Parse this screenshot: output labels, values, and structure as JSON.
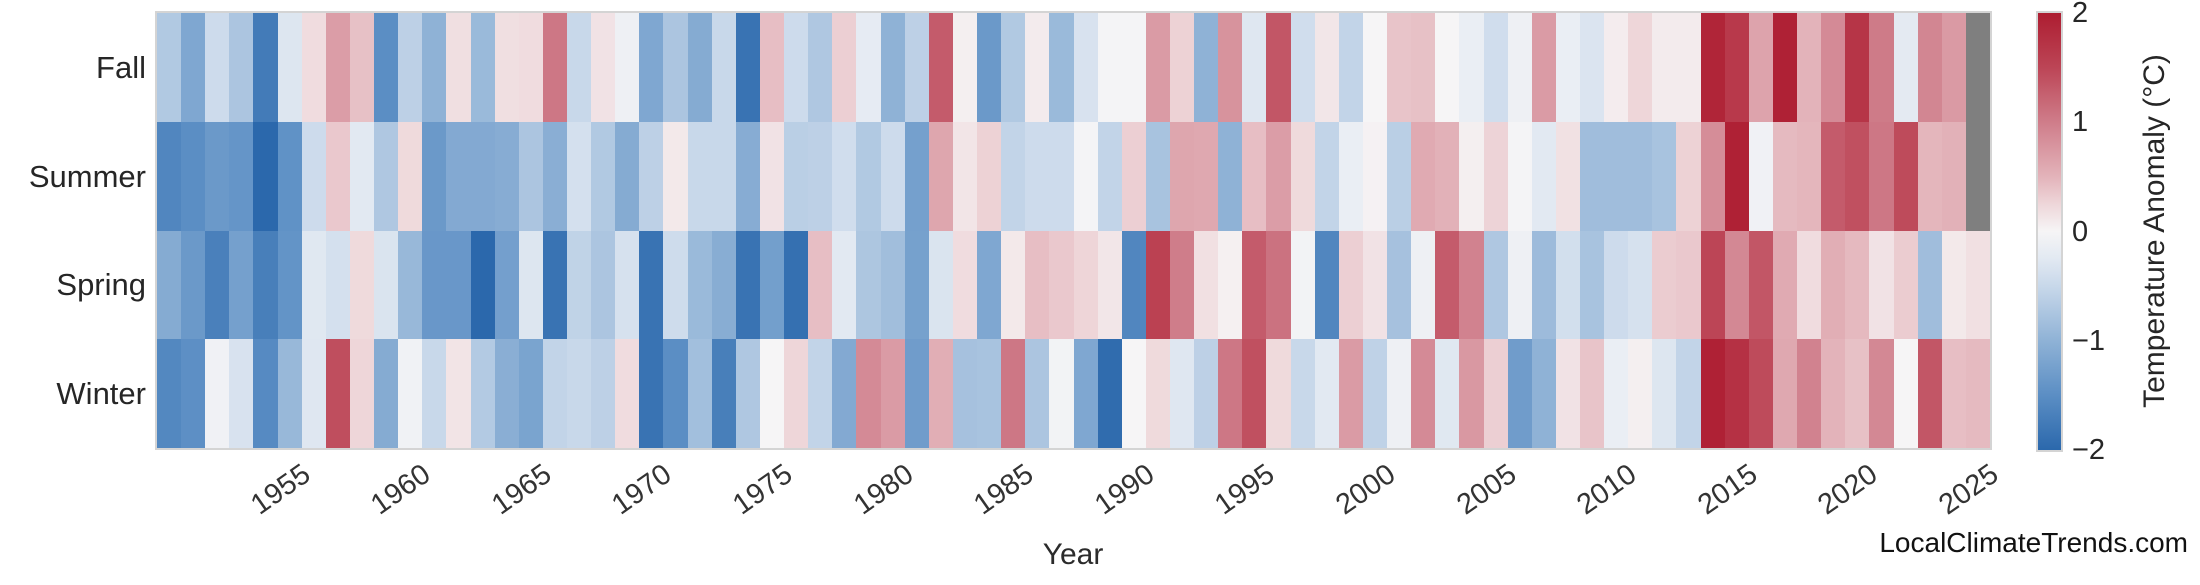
{
  "chart_data": {
    "type": "heatmap",
    "xlabel": "Year",
    "watermark": "LocalClimateTrends.com",
    "rows": [
      "Fall",
      "Summer",
      "Spring",
      "Winter"
    ],
    "years": [
      1950,
      1951,
      1952,
      1953,
      1954,
      1955,
      1956,
      1957,
      1958,
      1959,
      1960,
      1961,
      1962,
      1963,
      1964,
      1965,
      1966,
      1967,
      1968,
      1969,
      1970,
      1971,
      1972,
      1973,
      1974,
      1975,
      1976,
      1977,
      1978,
      1979,
      1980,
      1981,
      1982,
      1983,
      1984,
      1985,
      1986,
      1987,
      1988,
      1989,
      1990,
      1991,
      1992,
      1993,
      1994,
      1995,
      1996,
      1997,
      1998,
      1999,
      2000,
      2001,
      2002,
      2003,
      2004,
      2005,
      2006,
      2007,
      2008,
      2009,
      2010,
      2011,
      2012,
      2013,
      2014,
      2015,
      2016,
      2017,
      2018,
      2019,
      2020,
      2021,
      2022,
      2023,
      2024,
      2025
    ],
    "x_ticks": [
      1955,
      1960,
      1965,
      1970,
      1975,
      1980,
      1985,
      1990,
      1995,
      2000,
      2005,
      2010,
      2015,
      2020,
      2025
    ],
    "series": [
      {
        "name": "Fall",
        "values": [
          -0.7,
          -1.15,
          -0.45,
          -0.75,
          -1.75,
          -0.3,
          0.2,
          0.7,
          0.4,
          -1.5,
          -0.6,
          -1.0,
          0.18,
          -0.9,
          0.18,
          0.2,
          1.05,
          -0.5,
          0.15,
          -0.1,
          -1.15,
          -0.75,
          -1.1,
          -0.5,
          -1.85,
          0.42,
          -0.45,
          -0.72,
          0.3,
          -0.2,
          -1.0,
          -0.6,
          1.3,
          0.05,
          -1.35,
          -0.7,
          0.08,
          -0.9,
          -0.35,
          -0.03,
          -0.03,
          0.72,
          0.28,
          -1.0,
          0.8,
          -0.28,
          1.35,
          -0.42,
          0.12,
          -0.55,
          0.0,
          0.38,
          0.4,
          0.0,
          -0.15,
          -0.42,
          -0.1,
          0.72,
          -0.15,
          -0.32,
          0.07,
          0.25,
          0.08,
          0.08,
          1.9,
          1.65,
          0.65,
          1.95,
          0.5,
          0.88,
          1.7,
          1.02,
          -0.22,
          0.92,
          0.73,
          null
        ]
      },
      {
        "name": "Summer",
        "values": [
          -1.6,
          -1.5,
          -1.35,
          -1.4,
          -2.0,
          -1.45,
          -0.45,
          0.35,
          -0.25,
          -0.72,
          0.22,
          -1.35,
          -1.12,
          -1.12,
          -1.08,
          -0.75,
          -1.05,
          -0.38,
          -0.7,
          -1.1,
          -0.6,
          0.1,
          -0.5,
          -0.5,
          -1.08,
          0.15,
          -0.62,
          -0.6,
          -0.42,
          -0.7,
          -0.45,
          -1.25,
          0.62,
          0.13,
          0.28,
          -0.55,
          -0.45,
          -0.45,
          -0.02,
          -0.55,
          0.3,
          -0.78,
          0.62,
          0.6,
          -1.0,
          0.42,
          0.7,
          0.22,
          -0.55,
          -0.15,
          0.03,
          -0.62,
          0.58,
          0.52,
          0.05,
          0.27,
          -0.02,
          -0.25,
          0.16,
          -0.85,
          -0.85,
          -0.85,
          -0.78,
          0.28,
          0.85,
          1.95,
          -0.08,
          0.45,
          0.48,
          1.3,
          1.4,
          1.05,
          1.45,
          0.48,
          0.52,
          null
        ]
      },
      {
        "name": "Spring",
        "values": [
          -1.1,
          -1.35,
          -1.68,
          -1.25,
          -1.7,
          -1.42,
          -0.27,
          -0.38,
          0.22,
          -0.33,
          -0.92,
          -1.37,
          -1.37,
          -2.0,
          -1.26,
          -0.3,
          -1.85,
          -0.57,
          -0.75,
          -0.37,
          -1.85,
          -0.44,
          -0.9,
          -1.07,
          -1.85,
          -1.27,
          -1.9,
          0.42,
          -0.25,
          -0.74,
          -0.84,
          -1.24,
          -0.33,
          0.2,
          -1.15,
          0.1,
          0.42,
          0.35,
          0.26,
          0.12,
          -1.6,
          1.55,
          1.0,
          0.17,
          0.04,
          1.3,
          1.1,
          -0.05,
          -1.6,
          0.3,
          0.15,
          -0.8,
          -0.1,
          1.3,
          0.95,
          -0.72,
          -0.1,
          -0.88,
          -0.4,
          -0.78,
          -0.45,
          -0.37,
          0.32,
          0.35,
          1.5,
          0.9,
          1.35,
          0.58,
          0.2,
          0.55,
          0.46,
          0.15,
          0.32,
          -0.85,
          0.1,
          0.17
        ]
      },
      {
        "name": "Winter",
        "values": [
          -1.58,
          -1.48,
          -0.08,
          -0.35,
          -1.55,
          -0.92,
          -0.28,
          1.42,
          0.25,
          -1.1,
          -0.07,
          -0.5,
          0.14,
          -0.68,
          -1.05,
          -1.2,
          -0.55,
          -0.5,
          -0.6,
          0.2,
          -1.85,
          -1.5,
          -0.83,
          -1.7,
          -0.72,
          0.0,
          0.25,
          -0.55,
          -1.12,
          0.88,
          0.72,
          -1.3,
          0.55,
          -0.8,
          -0.78,
          1.05,
          -0.75,
          -0.05,
          -1.15,
          -1.95,
          0.0,
          0.22,
          -0.28,
          -0.6,
          1.05,
          1.4,
          0.22,
          -0.5,
          -0.25,
          0.72,
          -0.58,
          -0.1,
          0.88,
          -0.27,
          0.75,
          0.3,
          -1.3,
          -1.0,
          0.15,
          0.38,
          -0.15,
          0.05,
          -0.3,
          -0.55,
          1.95,
          1.75,
          1.45,
          0.6,
          0.95,
          0.5,
          0.4,
          0.9,
          0.0,
          1.35,
          0.42,
          0.45
        ]
      }
    ],
    "colorbar": {
      "label": "Temperature Anomaly (°C)",
      "ticks": [
        2,
        1,
        0,
        -1,
        -2
      ],
      "vmin": -2,
      "vmax": 2,
      "stops": [
        [
          -2.0,
          "#2b68ac"
        ],
        [
          -1.5,
          "#5b8ec4"
        ],
        [
          -1.0,
          "#8fb2d6"
        ],
        [
          -0.5,
          "#c8d8ea"
        ],
        [
          -0.25,
          "#e2e9f2"
        ],
        [
          0.0,
          "#f6f5f6"
        ],
        [
          0.25,
          "#eed6d9"
        ],
        [
          0.5,
          "#e3b3ba"
        ],
        [
          1.0,
          "#cf7d8a"
        ],
        [
          1.5,
          "#bc4556"
        ],
        [
          2.0,
          "#ad1d31"
        ]
      ]
    },
    "nan_color": "#7f7f7f",
    "grid_border_color": "#d4d4d4"
  }
}
